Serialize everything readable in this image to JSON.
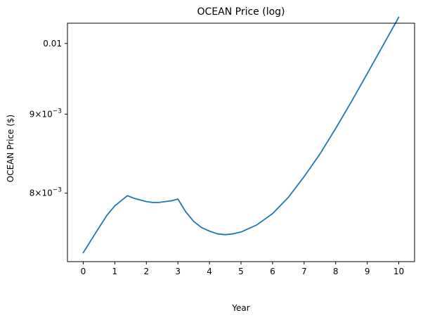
{
  "chart_data": {
    "type": "line",
    "title": "OCEAN Price (log)",
    "xlabel": "Year",
    "ylabel": "OCEAN Price ($)",
    "yscale": "log",
    "xlim": [
      -0.5,
      10.5
    ],
    "ylim": [
      0.007224,
      0.010306
    ],
    "grid": false,
    "x_ticks": [
      {
        "value": 0,
        "label": "0"
      },
      {
        "value": 1,
        "label": "1"
      },
      {
        "value": 2,
        "label": "2"
      },
      {
        "value": 3,
        "label": "3"
      },
      {
        "value": 4,
        "label": "4"
      },
      {
        "value": 5,
        "label": "5"
      },
      {
        "value": 6,
        "label": "6"
      },
      {
        "value": 7,
        "label": "7"
      },
      {
        "value": 8,
        "label": "8"
      },
      {
        "value": 9,
        "label": "9"
      },
      {
        "value": 10,
        "label": "10"
      }
    ],
    "y_ticks": [
      {
        "value": 0.008,
        "label": "8×10",
        "exp": "−3"
      },
      {
        "value": 0.009,
        "label": "9×10",
        "exp": "−3"
      },
      {
        "value": 0.01,
        "label": "0.01",
        "exp": ""
      }
    ],
    "series": [
      {
        "color": "#1f77b4",
        "x": [
          0,
          0.25,
          0.5,
          0.75,
          1.0,
          1.2,
          1.4,
          1.6,
          1.8,
          2.0,
          2.2,
          2.4,
          2.6,
          2.8,
          3.0,
          3.25,
          3.5,
          3.75,
          4.0,
          4.25,
          4.5,
          4.75,
          5.0,
          5.5,
          6.0,
          6.5,
          7.0,
          7.5,
          8.0,
          8.5,
          9.0,
          9.5,
          10.0
        ],
        "y": [
          0.00732,
          0.00746,
          0.0076,
          0.00774,
          0.00785,
          0.00791,
          0.00797,
          0.00794,
          0.00792,
          0.0079,
          0.00789,
          0.00789,
          0.0079,
          0.00791,
          0.00793,
          0.00778,
          0.00767,
          0.0076,
          0.00756,
          0.00753,
          0.00752,
          0.00753,
          0.00755,
          0.00763,
          0.00776,
          0.00795,
          0.0082,
          0.00848,
          0.00881,
          0.00917,
          0.00956,
          0.00997,
          0.0104
        ]
      }
    ]
  }
}
